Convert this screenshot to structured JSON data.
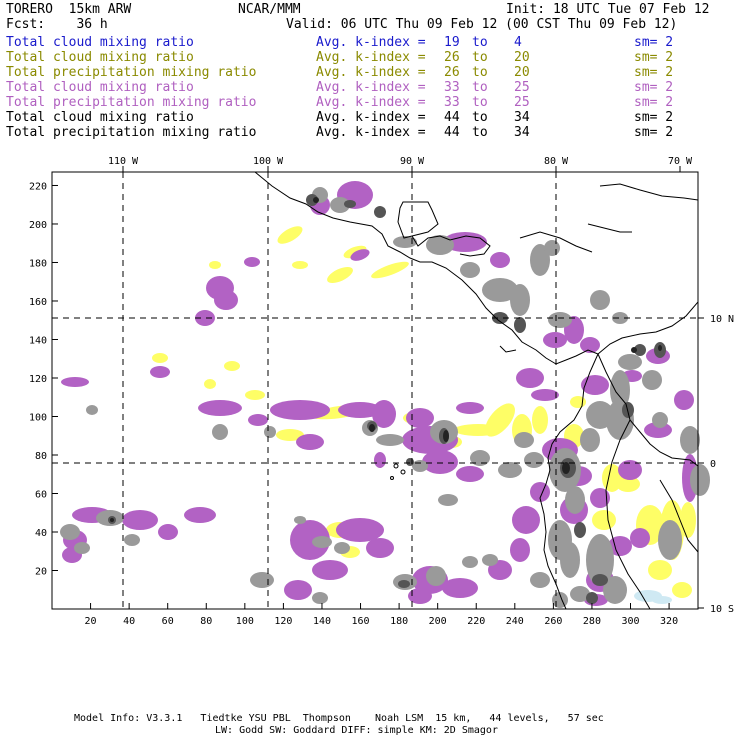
{
  "header": {
    "title": "TORERO  15km ARW",
    "center": "NCAR/MMM",
    "init": "Init: 18 UTC Tue 07 Feb 12",
    "forecast": "Fcst:    36 h",
    "valid": "Valid: 06 UTC Thu 09 Feb 12 (00 CST Thu 09 Feb 12)"
  },
  "legend": [
    {
      "field": "Total cloud mixing ratio",
      "kindex": "Avg. k-index =",
      "from": "19",
      "to_word": "to",
      "to": "4",
      "sm": "sm= 2",
      "color": "#1a1acc"
    },
    {
      "field": "Total cloud mixing ratio",
      "kindex": "Avg. k-index =",
      "from": "26",
      "to_word": "to",
      "to": "20",
      "sm": "sm= 2",
      "color": "#8a8a00"
    },
    {
      "field": "Total precipitation mixing ratio",
      "kindex": "Avg. k-index =",
      "from": "26",
      "to_word": "to",
      "to": "20",
      "sm": "sm= 2",
      "color": "#8a8a00"
    },
    {
      "field": "Total cloud mixing ratio",
      "kindex": "Avg. k-index =",
      "from": "33",
      "to_word": "to",
      "to": "25",
      "sm": "sm= 2",
      "color": "#b060c0"
    },
    {
      "field": "Total precipitation mixing ratio",
      "kindex": "Avg. k-index =",
      "from": "33",
      "to_word": "to",
      "to": "25",
      "sm": "sm= 2",
      "color": "#b060c0"
    },
    {
      "field": "Total cloud mixing ratio",
      "kindex": "Avg. k-index =",
      "from": "44",
      "to_word": "to",
      "to": "34",
      "sm": "sm= 2",
      "color": "#000000"
    },
    {
      "field": "Total precipitation mixing ratio",
      "kindex": "Avg. k-index =",
      "from": "44",
      "to_word": "to",
      "to": "34",
      "sm": "sm= 2",
      "color": "#000000"
    }
  ],
  "map": {
    "lon_labels": [
      "110 W",
      "100 W",
      "90 W",
      "80 W",
      "70 W"
    ],
    "lat_labels": [
      "10 N",
      "0",
      "10 S"
    ],
    "x_ticks": [
      "20",
      "40",
      "60",
      "80",
      "100",
      "120",
      "140",
      "160",
      "180",
      "200",
      "220",
      "240",
      "260",
      "280",
      "300",
      "320"
    ],
    "y_ticks": [
      "20",
      "40",
      "60",
      "80",
      "100",
      "120",
      "140",
      "160",
      "180",
      "200",
      "220"
    ],
    "colors": {
      "purple": "#b262c4",
      "yellow": "#fefe66",
      "gray": "#9a9a9a",
      "darkgray": "#555555",
      "black": "#222222",
      "lightblue": "#cfe9f3"
    }
  },
  "footer": {
    "line1": "Model Info: V3.3.1   Tiedtke YSU PBL  Thompson    Noah LSM  15 km,   44 levels,   57 sec",
    "line2": "LW: Godd SW: Goddard DIFF: simple KM: 2D Smagor"
  }
}
